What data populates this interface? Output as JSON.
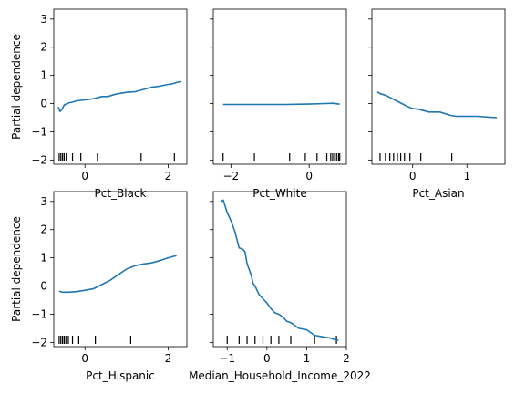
{
  "chart_data": {
    "type": "line",
    "layout": "2x3 grid of partial dependence plots (6th panel empty)",
    "ylabel": "Partial dependence",
    "ylim": [
      -2.15,
      3.35
    ],
    "yticks": [
      -2,
      -1,
      0,
      1,
      2,
      3
    ],
    "line_color": "#1f77b4",
    "panels": [
      {
        "xlabel": "Pct_Black",
        "xlim": [
          -0.75,
          2.45
        ],
        "xticks": [
          0,
          2
        ],
        "x": [
          -0.64,
          -0.6,
          -0.55,
          -0.5,
          -0.4,
          -0.3,
          -0.2,
          0.0,
          0.2,
          0.4,
          0.55,
          0.7,
          0.8,
          1.0,
          1.2,
          1.4,
          1.6,
          1.8,
          2.0,
          2.1,
          2.2,
          2.32
        ],
        "y": [
          -0.12,
          -0.28,
          -0.2,
          -0.05,
          0.02,
          0.05,
          0.1,
          0.13,
          0.17,
          0.25,
          0.25,
          0.32,
          0.35,
          0.4,
          0.42,
          0.5,
          0.58,
          0.62,
          0.68,
          0.7,
          0.75,
          0.78
        ],
        "rug": [
          -0.62,
          -0.58,
          -0.54,
          -0.5,
          -0.45,
          -0.3,
          -0.1,
          0.3,
          1.35,
          2.15
        ]
      },
      {
        "xlabel": "Pct_White",
        "xlim": [
          -2.45,
          0.95
        ],
        "xticks": [
          -2,
          0
        ],
        "x": [
          -2.2,
          -1.8,
          -1.4,
          -1.0,
          -0.6,
          -0.2,
          0.1,
          0.4,
          0.6,
          0.78
        ],
        "y": [
          -0.03,
          -0.03,
          -0.03,
          -0.03,
          -0.03,
          -0.02,
          -0.01,
          0.0,
          0.01,
          -0.02
        ],
        "rug": [
          -2.2,
          -1.4,
          -0.5,
          -0.1,
          0.2,
          0.45,
          0.55,
          0.6,
          0.65,
          0.7,
          0.75,
          0.78
        ]
      },
      {
        "xlabel": "Pct_Asian",
        "xlim": [
          -0.75,
          1.7
        ],
        "xticks": [
          0,
          1
        ],
        "x": [
          -0.65,
          -0.6,
          -0.5,
          -0.4,
          -0.3,
          -0.2,
          -0.1,
          0.0,
          0.1,
          0.3,
          0.5,
          0.7,
          0.8,
          1.0,
          1.2,
          1.4,
          1.55
        ],
        "y": [
          0.42,
          0.35,
          0.3,
          0.2,
          0.1,
          0.0,
          -0.1,
          -0.18,
          -0.2,
          -0.3,
          -0.3,
          -0.42,
          -0.45,
          -0.45,
          -0.45,
          -0.48,
          -0.5
        ],
        "rug": [
          -0.6,
          -0.5,
          -0.42,
          -0.35,
          -0.28,
          -0.22,
          -0.15,
          -0.05,
          0.15,
          0.72
        ]
      },
      {
        "xlabel": "Pct_Hispanic",
        "xlim": [
          -0.75,
          2.45
        ],
        "xticks": [
          0,
          2
        ],
        "x": [
          -0.62,
          -0.55,
          -0.4,
          -0.2,
          0.0,
          0.2,
          0.4,
          0.6,
          0.8,
          1.0,
          1.2,
          1.4,
          1.6,
          1.8,
          2.0,
          2.2
        ],
        "y": [
          -0.18,
          -0.22,
          -0.22,
          -0.2,
          -0.15,
          -0.1,
          0.05,
          0.2,
          0.4,
          0.6,
          0.72,
          0.78,
          0.82,
          0.9,
          1.0,
          1.08
        ],
        "rug": [
          -0.62,
          -0.58,
          -0.54,
          -0.5,
          -0.46,
          -0.4,
          -0.3,
          -0.15,
          0.25,
          1.1
        ]
      },
      {
        "xlabel": "Median_Household_Income_2022",
        "xlim": [
          -1.35,
          2.0
        ],
        "xticks": [
          -1,
          0,
          1,
          2
        ],
        "x": [
          -1.15,
          -1.1,
          -1.0,
          -0.9,
          -0.8,
          -0.7,
          -0.6,
          -0.55,
          -0.5,
          -0.45,
          -0.4,
          -0.35,
          -0.3,
          -0.2,
          -0.1,
          0.0,
          0.1,
          0.2,
          0.3,
          0.4,
          0.5,
          0.6,
          0.8,
          1.0,
          1.2,
          1.4,
          1.6,
          1.7,
          1.8
        ],
        "y": [
          3.0,
          3.05,
          2.6,
          2.3,
          1.9,
          1.35,
          1.3,
          1.2,
          0.8,
          0.6,
          0.4,
          0.1,
          0.0,
          -0.3,
          -0.45,
          -0.6,
          -0.8,
          -0.95,
          -1.0,
          -1.1,
          -1.25,
          -1.3,
          -1.5,
          -1.55,
          -1.75,
          -1.8,
          -1.85,
          -1.9,
          -1.92
        ],
        "rug": [
          -1.0,
          -0.7,
          -0.5,
          -0.3,
          -0.1,
          0.1,
          0.3,
          0.6,
          1.2,
          1.75
        ]
      }
    ]
  }
}
